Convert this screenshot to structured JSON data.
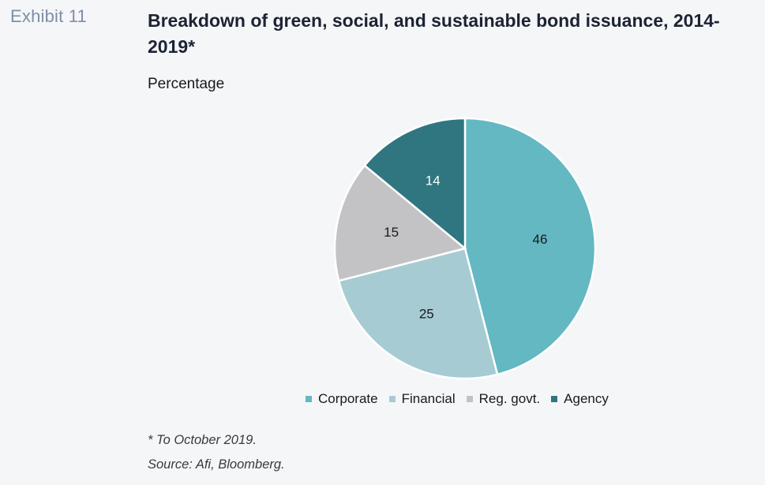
{
  "exhibit_label": "Exhibit 11",
  "title": "Breakdown of green, social, and sustainable bond issuance, 2014-2019*",
  "subtitle": "Percentage",
  "footnote": "* To October 2019.",
  "source": "Source: Afi, Bloomberg.",
  "chart_data": {
    "type": "pie",
    "title": "Breakdown of green, social, and sustainable bond issuance, 2014-2019*",
    "unit": "Percentage",
    "legend_position": "bottom",
    "slices": [
      {
        "label": "Corporate",
        "value": 46,
        "color": "#63b8c2"
      },
      {
        "label": "Financial",
        "value": 25,
        "color": "#a6cbd3"
      },
      {
        "label": "Reg. govt.",
        "value": 15,
        "color": "#c3c3c6"
      },
      {
        "label": "Agency",
        "value": 14,
        "color": "#2f7680"
      }
    ]
  }
}
